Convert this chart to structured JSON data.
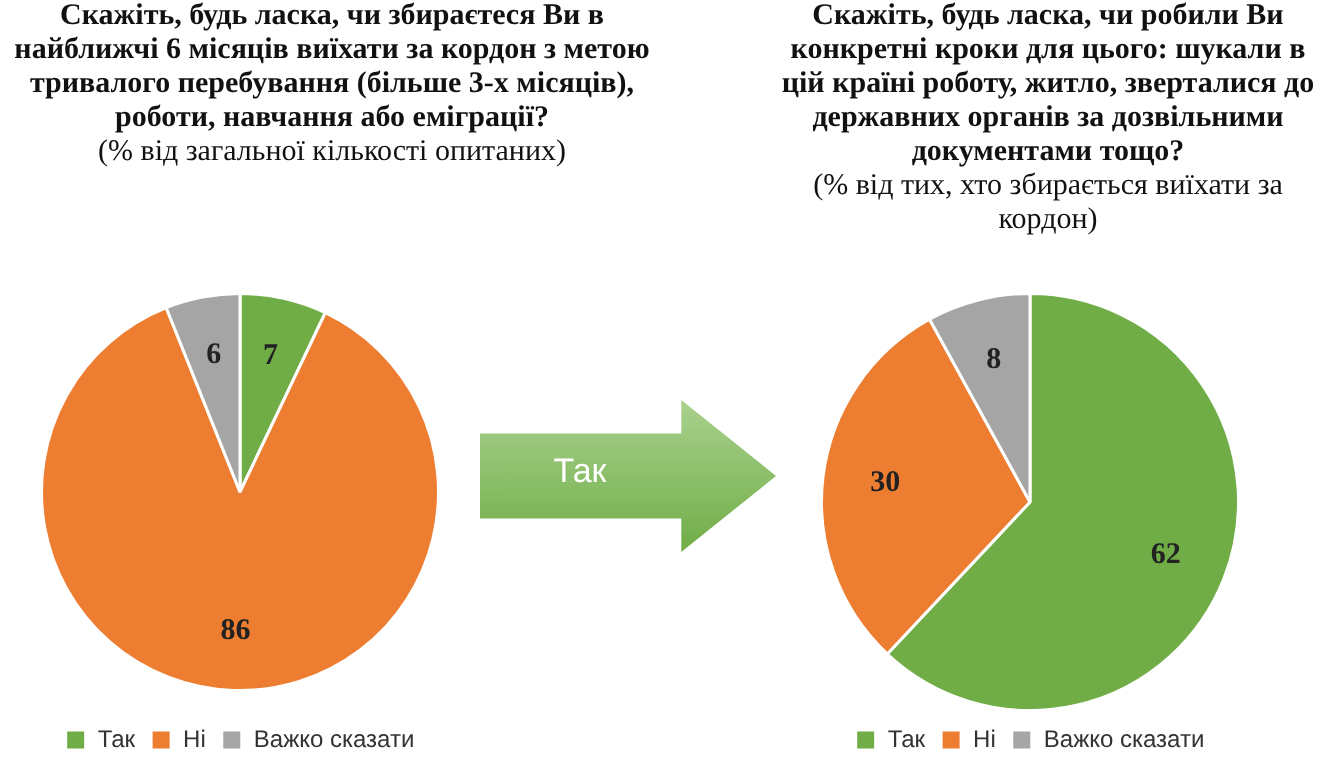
{
  "chart_data": [
    {
      "type": "pie",
      "title": "Скажіть, будь ласка, чи збираєтеся Ви в найближчі 6 місяців виїхати за кордон з метою тривалого перебування (більше 3-х місяців), роботи, навчання або еміграції?",
      "subtitle": "(% від загальної кількості опитаних)",
      "categories": [
        "Так",
        "Ні",
        "Важко сказати"
      ],
      "values": [
        7,
        86,
        6
      ],
      "colors": [
        "#70ad47",
        "#ed7d31",
        "#a5a5a5"
      ],
      "data_labels": true,
      "legend": "bottom"
    },
    {
      "type": "pie",
      "title": "Скажіть, будь ласка, чи робили Ви конкретні кроки для цього: шукали в цій країні роботу, житло, зверталися до державних органів за дозвільними документами тощо?",
      "subtitle": "(% від тих, хто збирається виїхати за кордон)",
      "annotations": [
        "Так"
      ],
      "categories": [
        "Так",
        "Ні",
        "Важко сказати"
      ],
      "values": [
        62,
        30,
        8
      ],
      "colors": [
        "#70ad47",
        "#ed7d31",
        "#a5a5a5"
      ],
      "data_labels": true,
      "legend": "bottom"
    }
  ]
}
